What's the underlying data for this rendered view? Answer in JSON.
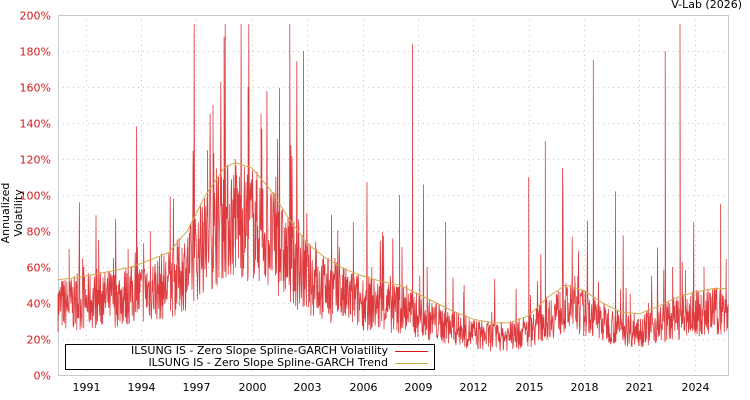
{
  "header": {
    "credit": "V-Lab (2026)"
  },
  "colors": {
    "volatility": "#d7191c",
    "trend": "#d4a94a",
    "grid": "#c8c8c8",
    "tick_label": "#d7191c"
  },
  "legend": {
    "items": [
      {
        "label": "ILSUNG IS - Zero Slope Spline-GARCH Volatility",
        "color": "#d7191c"
      },
      {
        "label": "ILSUNG IS - Zero Slope Spline-GARCH Trend",
        "color": "#d4a94a"
      }
    ]
  },
  "chart_data": {
    "type": "line",
    "title": "",
    "xlabel": "",
    "ylabel": "Annualized Volatility",
    "xlim": [
      1990.0,
      2026.3
    ],
    "ylim": [
      0,
      200
    ],
    "grid": true,
    "legend_position": "bottom-left inside",
    "x_ticks": [
      "1991",
      "1994",
      "1997",
      "2000",
      "2003",
      "2006",
      "2009",
      "2012",
      "2015",
      "2018",
      "2021",
      "2024"
    ],
    "y_ticks": [
      "0%",
      "20%",
      "40%",
      "60%",
      "80%",
      "100%",
      "120%",
      "140%",
      "160%",
      "180%",
      "200%"
    ],
    "series": [
      {
        "name": "ILSUNG IS - Zero Slope Spline-GARCH Volatility",
        "x": [
          1990.0,
          1990.3,
          1990.6,
          1991.0,
          1991.4,
          1991.8,
          1992.2,
          1992.6,
          1993.0,
          1993.4,
          1993.8,
          1994.2,
          1994.6,
          1995.0,
          1995.4,
          1995.8,
          1996.2,
          1996.6,
          1997.0,
          1997.4,
          1997.8,
          1998.1,
          1998.4,
          1998.7,
          1999.0,
          1999.3,
          1999.6,
          2000.0,
          2000.3,
          2000.6,
          2001.0,
          2001.4,
          2001.8,
          2002.2,
          2002.6,
          2003.0,
          2003.3,
          2003.6,
          2004.0,
          2004.5,
          2005.0,
          2005.5,
          2006.0,
          2006.5,
          2007.0,
          2007.5,
          2008.0,
          2008.5,
          2008.9,
          2009.2,
          2009.6,
          2010.0,
          2010.5,
          2011.0,
          2011.6,
          2012.0,
          2012.5,
          2013.0,
          2013.5,
          2014.0,
          2014.5,
          2015.0,
          2015.5,
          2015.9,
          2016.4,
          2017.0,
          2017.5,
          2018.0,
          2018.5,
          2019.0,
          2019.5,
          2020.0,
          2020.2,
          2020.6,
          2021.0,
          2021.5,
          2022.0,
          2022.5,
          2022.9,
          2023.3,
          2023.7,
          2024.0,
          2024.5,
          2025.0,
          2025.5,
          2025.9,
          2026.2
        ],
        "values": [
          45,
          30,
          70,
          40,
          60,
          35,
          75,
          45,
          65,
          40,
          70,
          35,
          55,
          80,
          45,
          40,
          62,
          60,
          70,
          65,
          90,
          125,
          150,
          110,
          188,
          95,
          120,
          80,
          160,
          90,
          145,
          75,
          110,
          60,
          90,
          50,
          180,
          55,
          70,
          50,
          65,
          45,
          85,
          40,
          60,
          50,
          55,
          100,
          50,
          184,
          55,
          60,
          40,
          85,
          35,
          50,
          30,
          25,
          35,
          20,
          30,
          25,
          110,
          30,
          130,
          45,
          30,
          55,
          25,
          175,
          20,
          30,
          102,
          25,
          45,
          20,
          40,
          25,
          180,
          60,
          195,
          40,
          30,
          60,
          35,
          95,
          50
        ]
      },
      {
        "name": "ILSUNG IS - Zero Slope Spline-GARCH Trend",
        "x": [
          1990.0,
          1991.0,
          1992.0,
          1993.0,
          1994.0,
          1995.0,
          1996.0,
          1997.0,
          1998.0,
          1999.0,
          1999.6,
          2000.5,
          2001.5,
          2002.5,
          2003.5,
          2004.5,
          2005.5,
          2006.5,
          2007.5,
          2008.5,
          2009.5,
          2010.5,
          2011.5,
          2012.5,
          2013.5,
          2014.5,
          2015.5,
          2016.5,
          2017.5,
          2018.5,
          2019.5,
          2020.5,
          2021.5,
          2022.5,
          2023.5,
          2024.5,
          2025.5,
          2026.2
        ],
        "values": [
          53,
          54,
          56,
          58,
          60,
          64,
          68,
          80,
          100,
          115,
          118,
          115,
          103,
          87,
          73,
          65,
          59,
          55,
          52,
          50,
          45,
          40,
          35,
          31,
          29,
          29,
          33,
          43,
          50,
          47,
          40,
          35,
          34,
          38,
          43,
          46,
          48,
          48
        ]
      }
    ]
  }
}
